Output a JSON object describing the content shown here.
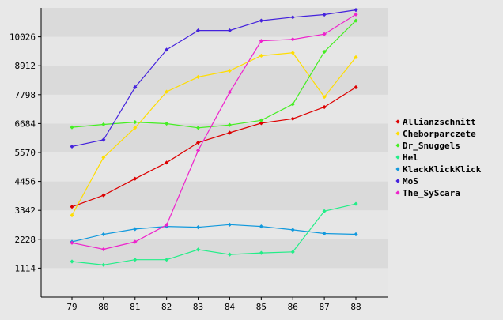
{
  "chart_data": {
    "type": "line",
    "title": "",
    "xlabel": "",
    "ylabel": "",
    "x": [
      "79",
      "80",
      "81",
      "82",
      "83",
      "84",
      "85",
      "86",
      "87",
      "88"
    ],
    "yticks": [
      1114,
      2228,
      3342,
      4456,
      5570,
      6684,
      7798,
      8912,
      10026
    ],
    "ylim": [
      0,
      11140
    ],
    "grid": "horizontal bands",
    "legend_position": "right",
    "series": [
      {
        "name": "Allianzschnitt",
        "color": "#dd0000",
        "values": [
          3480,
          3920,
          4560,
          5180,
          5950,
          6330,
          6700,
          6870,
          7320,
          8080
        ]
      },
      {
        "name": "Cheborparczete",
        "color": "#ffdd00",
        "values": [
          3150,
          5380,
          6520,
          7910,
          8480,
          8720,
          9300,
          9410,
          7710,
          9240
        ]
      },
      {
        "name": "Dr_Snuggels",
        "color": "#44ee22",
        "values": [
          6540,
          6650,
          6740,
          6680,
          6520,
          6630,
          6810,
          7430,
          9450,
          10650
        ]
      },
      {
        "name": "Hel",
        "color": "#22ee88",
        "values": [
          1370,
          1240,
          1440,
          1440,
          1830,
          1640,
          1700,
          1740,
          3310,
          3590
        ]
      },
      {
        "name": "KlackKlickKlick",
        "color": "#1199dd",
        "values": [
          2130,
          2420,
          2620,
          2720,
          2690,
          2790,
          2720,
          2590,
          2450,
          2420
        ]
      },
      {
        "name": "MoS",
        "color": "#4422dd",
        "values": [
          5800,
          6060,
          8080,
          9530,
          10270,
          10270,
          10650,
          10780,
          10880,
          11060
        ]
      },
      {
        "name": "The_SyScara",
        "color": "#ee22cc",
        "values": [
          2090,
          1840,
          2130,
          2780,
          5650,
          7890,
          9870,
          9930,
          10130,
          10890
        ]
      }
    ]
  }
}
